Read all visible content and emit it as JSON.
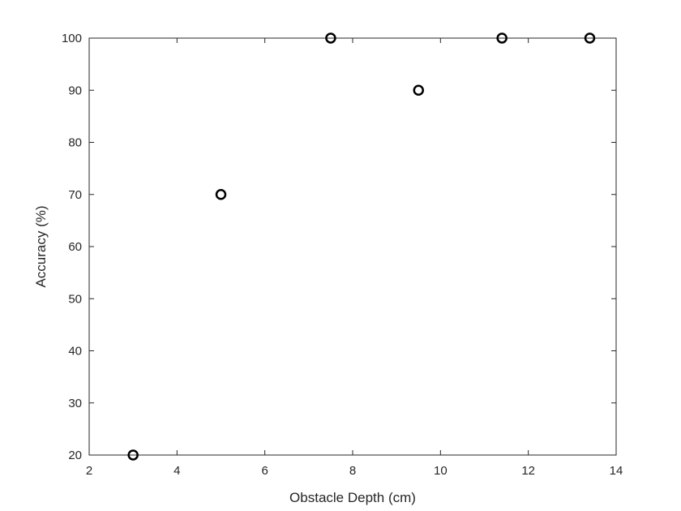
{
  "chart_data": {
    "type": "scatter",
    "xlabel": "Obstacle Depth (cm)",
    "ylabel": "Accuracy (%)",
    "xlim": [
      2,
      14
    ],
    "ylim": [
      20,
      100
    ],
    "xticks": [
      "2",
      "4",
      "6",
      "8",
      "10",
      "12",
      "14"
    ],
    "yticks": [
      "20",
      "30",
      "40",
      "50",
      "60",
      "70",
      "80",
      "90",
      "100"
    ],
    "grid": false,
    "marker": "circle",
    "marker_color": "#000000",
    "series": [
      {
        "points": [
          {
            "x": 3,
            "y": 20
          },
          {
            "x": 5,
            "y": 70
          },
          {
            "x": 7.5,
            "y": 100
          },
          {
            "x": 9.5,
            "y": 90
          },
          {
            "x": 11.4,
            "y": 100
          },
          {
            "x": 13.4,
            "y": 100
          }
        ]
      }
    ]
  }
}
